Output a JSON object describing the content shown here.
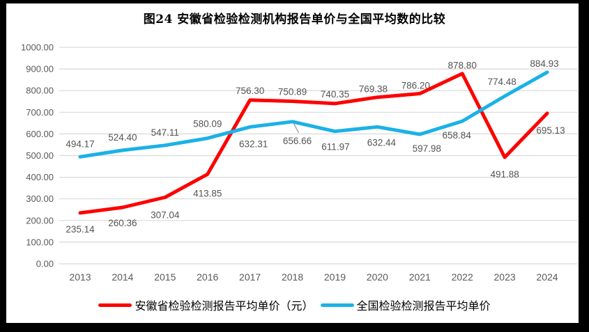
{
  "title": "图24 安徽省检验检测机构报告单价与全国平均数的比较",
  "colors": {
    "anhui_series": "#fe0000",
    "national_series": "#1bb1e7",
    "gridline": "#d9d9d9",
    "tick_label": "#595959",
    "data_label": "#545454",
    "frame": "#000000",
    "background": "#ffffff",
    "leader_line": "#a6a6a6"
  },
  "chart_data": {
    "type": "line",
    "title": "图24 安徽省检验检测机构报告单价与全国平均数的比较",
    "categories": [
      "2013",
      "2014",
      "2015",
      "2016",
      "2017",
      "2018",
      "2019",
      "2020",
      "2021",
      "2022",
      "2023",
      "2024"
    ],
    "series": [
      {
        "name": "安徽省检验检测报告平均单价（元）",
        "color": "#fe0000",
        "values": [
          235.14,
          260.36,
          307.04,
          413.85,
          756.3,
          750.89,
          740.35,
          769.38,
          786.2,
          878.8,
          491.88,
          695.13
        ]
      },
      {
        "name": "全国检验检测报告平均单价",
        "color": "#1bb1e7",
        "values": [
          494.17,
          524.4,
          547.11,
          580.09,
          632.31,
          656.66,
          611.97,
          632.44,
          597.98,
          658.84,
          774.48,
          884.93
        ]
      }
    ],
    "xlabel": "",
    "ylabel": "",
    "ylim": [
      0,
      1000
    ],
    "ytick_step": 100,
    "ytick_decimals": 2,
    "grid": "horizontal",
    "data_labels": true,
    "data_label_decimals": 2,
    "legend_position": "bottom"
  }
}
